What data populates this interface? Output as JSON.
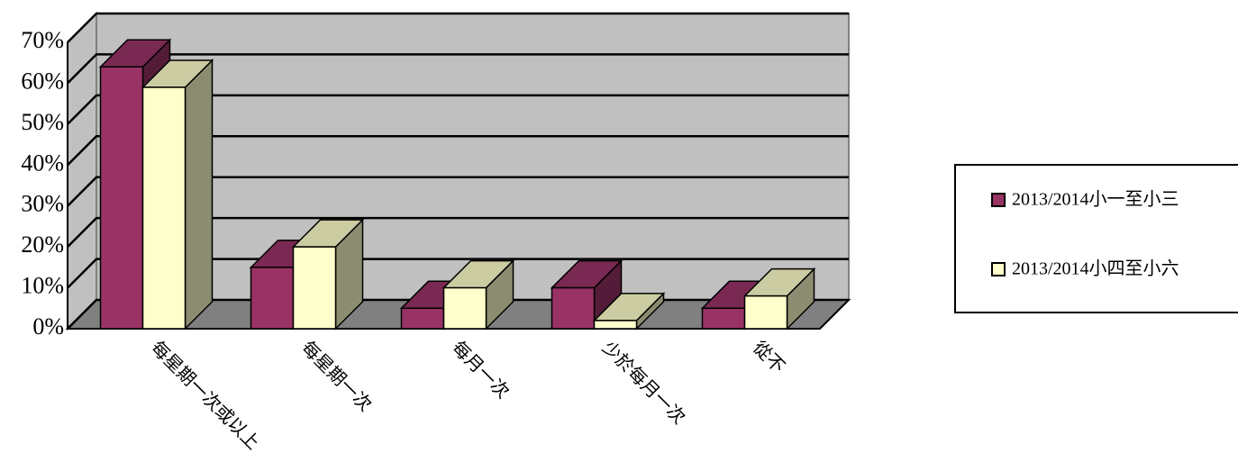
{
  "chart_data": {
    "type": "bar3d",
    "categories": [
      "每星期一次或以上",
      "每星期一次",
      "每月一次",
      "少於每月一次",
      "從不"
    ],
    "series": [
      {
        "name": "2013/2014小一至小三",
        "color": "#993366",
        "values": [
          64,
          15,
          5,
          10,
          5
        ]
      },
      {
        "name": "2013/2014小四至小六",
        "color": "#ffffcc",
        "values": [
          59,
          20,
          10,
          2,
          8
        ]
      }
    ],
    "ylim": [
      0,
      70
    ],
    "yticks": [
      {
        "value": 0,
        "label": "0%"
      },
      {
        "value": 10,
        "label": "10%"
      },
      {
        "value": 20,
        "label": "20%"
      },
      {
        "value": 30,
        "label": "30%"
      },
      {
        "value": 40,
        "label": "40%"
      },
      {
        "value": 50,
        "label": "50%"
      },
      {
        "value": 60,
        "label": "60%"
      },
      {
        "value": 70,
        "label": "70%"
      }
    ],
    "grid": true
  }
}
